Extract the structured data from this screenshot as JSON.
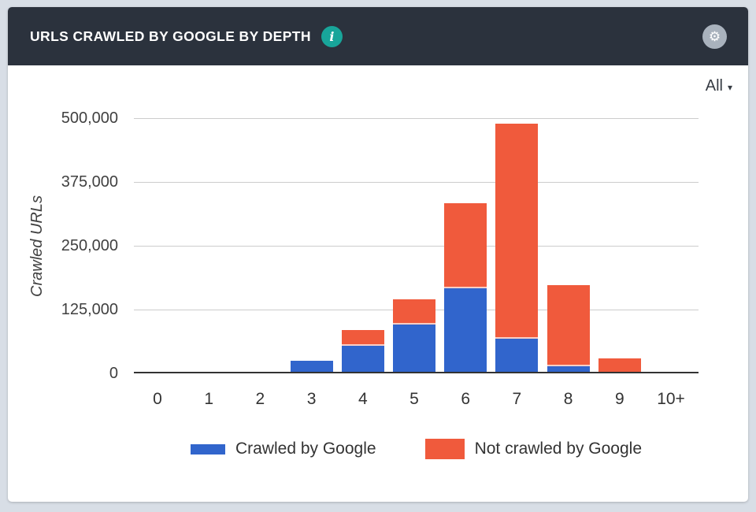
{
  "header": {
    "title": "URLS CRAWLED BY GOOGLE BY DEPTH"
  },
  "icons": {
    "info": "i",
    "gear": "⚙",
    "dropdown_arrow": "▾"
  },
  "filter": {
    "label": "All"
  },
  "colors": {
    "page_bg": "#D8DEE6",
    "card_bg": "#FFFFFF",
    "header_bg": "#2B323D",
    "header_text": "#FFFFFF",
    "info_icon_bg": "#18A59A",
    "gear_circle_bg": "#A9B2BD",
    "gridline": "#CCCCCC",
    "axis_line": "#333333",
    "axis_text": "#404040",
    "crawled_blue": "#3165CC",
    "not_crawled_red": "#F05A3C"
  },
  "chart_data": {
    "type": "bar",
    "stacked": true,
    "title": "URLS CRAWLED BY GOOGLE BY DEPTH",
    "xlabel": "",
    "ylabel": "Crawled URLs",
    "categories": [
      "0",
      "1",
      "2",
      "3",
      "4",
      "5",
      "6",
      "7",
      "8",
      "9",
      "10+"
    ],
    "series": [
      {
        "name": "Crawled by Google",
        "color": "#3165CC",
        "values": [
          0,
          0,
          0,
          21000,
          51000,
          92000,
          164000,
          65000,
          11000,
          0,
          0
        ]
      },
      {
        "name": "Not crawled by Google",
        "color": "#F05A3C",
        "values": [
          0,
          0,
          0,
          0,
          31000,
          50000,
          167000,
          421000,
          159000,
          26000,
          0
        ]
      }
    ],
    "ylim": [
      0,
      500000
    ],
    "yticks": [
      0,
      125000,
      250000,
      375000,
      500000
    ],
    "ytick_labels": [
      "0",
      "125,000",
      "250,000",
      "375,000",
      "500,000"
    ],
    "grid": "horizontal",
    "legend_position": "bottom"
  }
}
